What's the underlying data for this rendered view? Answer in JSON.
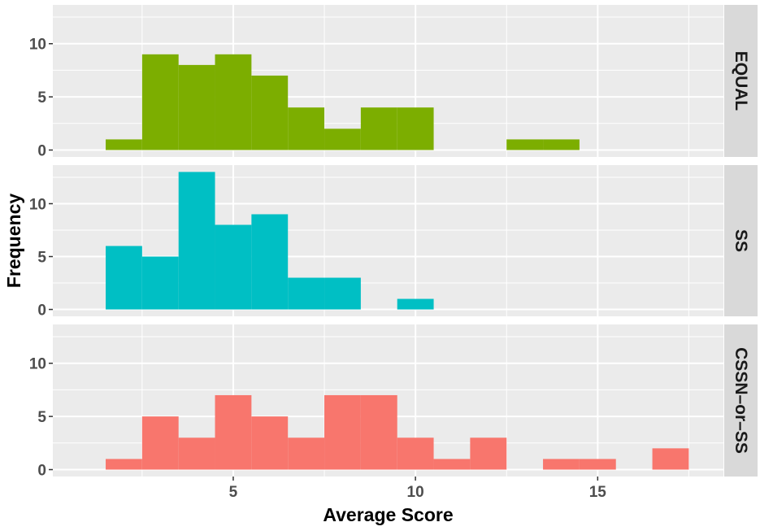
{
  "chart_data": {
    "type": "bar",
    "subtype": "faceted-histogram",
    "xlabel": "Average Score",
    "ylabel": "Frequency",
    "xlim": [
      0.05,
      18.45
    ],
    "ylim": [
      -0.65,
      13.65
    ],
    "x_ticks": [
      5,
      10,
      15
    ],
    "y_ticks": [
      0,
      5,
      10
    ],
    "bin_width": 1,
    "bin_edges": [
      1.5,
      2.5,
      3.5,
      4.5,
      5.5,
      6.5,
      7.5,
      8.5,
      9.5,
      10.5,
      11.5,
      12.5,
      13.5,
      14.5,
      15.5,
      16.5,
      17.5
    ],
    "grid": true,
    "legend": "none",
    "facets": [
      {
        "name": "EQUAL",
        "color": "#7CAE00",
        "values": [
          1,
          9,
          8,
          9,
          7,
          4,
          2,
          4,
          4,
          0,
          0,
          1,
          1,
          0,
          0,
          0
        ]
      },
      {
        "name": "SS",
        "color": "#00BFC4",
        "values": [
          6,
          5,
          13,
          8,
          9,
          3,
          3,
          0,
          1,
          0,
          0,
          0,
          0,
          0,
          0,
          0
        ]
      },
      {
        "name": "CSSN–or–SS",
        "color": "#F8766D",
        "values": [
          1,
          5,
          3,
          7,
          5,
          3,
          7,
          7,
          3,
          1,
          3,
          0,
          1,
          1,
          0,
          2
        ]
      }
    ]
  }
}
